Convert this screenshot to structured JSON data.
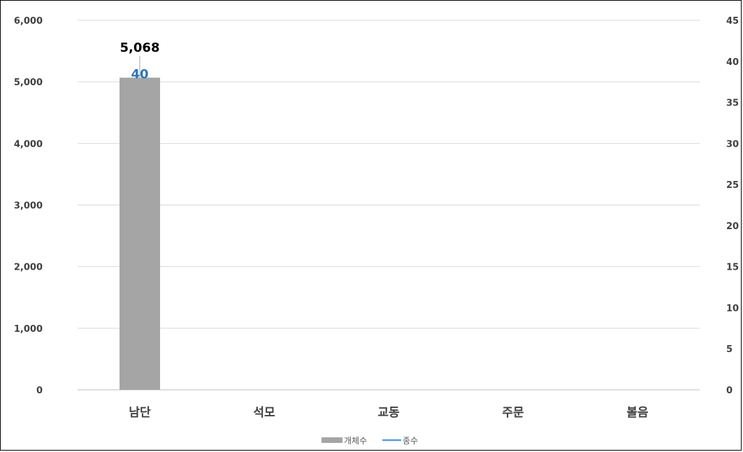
{
  "chart_data": {
    "type": "bar",
    "categories": [
      "남단",
      "석모",
      "교동",
      "주문",
      "볼음"
    ],
    "series": [
      {
        "name": "개체수",
        "type": "bar",
        "axis": "left",
        "values": [
          5068,
          null,
          null,
          null,
          null
        ],
        "color": "#a5a5a5",
        "data_labels": [
          "5,068"
        ]
      },
      {
        "name": "종수",
        "type": "line",
        "axis": "right",
        "values": [
          40,
          null,
          null,
          null,
          null
        ],
        "color": "#5b9bd5",
        "data_labels": [
          "40"
        ]
      }
    ],
    "y_left": {
      "min": 0,
      "max": 6000,
      "ticks": [
        0,
        1000,
        2000,
        3000,
        4000,
        5000,
        6000
      ],
      "tick_labels": [
        "0",
        "1,000",
        "2,000",
        "3,000",
        "4,000",
        "5,000",
        "6,000"
      ]
    },
    "y_right": {
      "min": 0,
      "max": 45,
      "ticks": [
        0,
        5,
        10,
        15,
        20,
        25,
        30,
        35,
        40,
        45
      ],
      "tick_labels": [
        "0",
        "5",
        "10",
        "15",
        "20",
        "25",
        "30",
        "35",
        "40",
        "45"
      ]
    },
    "grid": true,
    "legend_position": "bottom",
    "label_colors": {
      "bar_label": "#000000",
      "line_label": "#2e75b6"
    }
  }
}
